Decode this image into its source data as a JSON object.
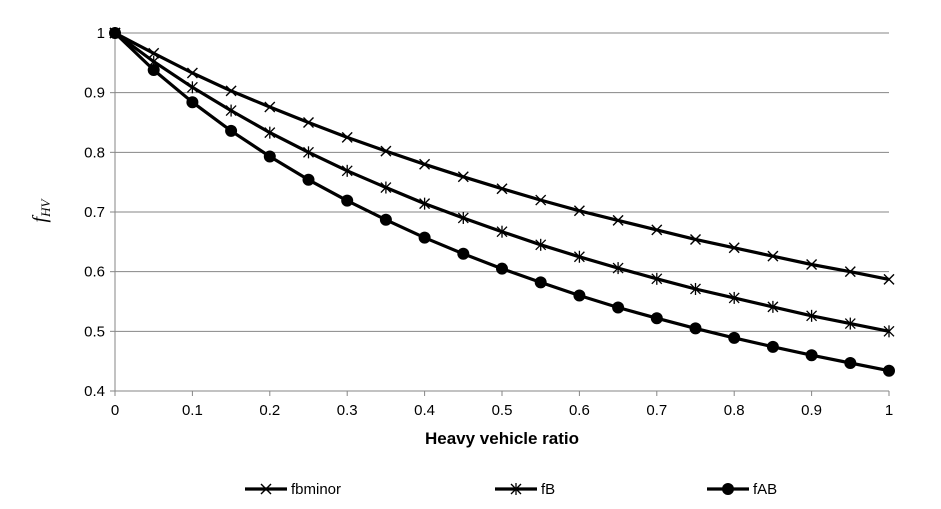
{
  "chart_data": {
    "type": "line",
    "xlabel": "Heavy vehicle ratio",
    "ylabel": {
      "main": "f",
      "sub": "HV"
    },
    "xlim": [
      0,
      1
    ],
    "ylim": [
      0.4,
      1
    ],
    "x_ticks": [
      0,
      0.1,
      0.2,
      0.3,
      0.4,
      0.5,
      0.6,
      0.7,
      0.8,
      0.9,
      1
    ],
    "y_ticks": [
      0.4,
      0.5,
      0.6,
      0.7,
      0.8,
      0.9,
      1
    ],
    "grid": "horizontal",
    "legend_position": "bottom",
    "x": [
      0,
      0.05,
      0.1,
      0.15,
      0.2,
      0.25,
      0.3,
      0.35,
      0.4,
      0.45,
      0.5,
      0.55,
      0.6,
      0.65,
      0.7,
      0.75,
      0.8,
      0.85,
      0.9,
      0.95,
      1
    ],
    "series": [
      {
        "name": "fbminor",
        "marker": "x",
        "color": "#000000",
        "values": [
          1,
          0.966,
          0.933,
          0.903,
          0.876,
          0.85,
          0.825,
          0.802,
          0.78,
          0.759,
          0.739,
          0.72,
          0.702,
          0.686,
          0.67,
          0.654,
          0.64,
          0.626,
          0.612,
          0.6,
          0.587
        ]
      },
      {
        "name": "fB",
        "marker": "asterisk",
        "color": "#000000",
        "values": [
          1,
          0.952,
          0.909,
          0.87,
          0.833,
          0.8,
          0.769,
          0.741,
          0.714,
          0.69,
          0.667,
          0.645,
          0.625,
          0.606,
          0.588,
          0.571,
          0.556,
          0.541,
          0.526,
          0.513,
          0.5
        ]
      },
      {
        "name": "fAB",
        "marker": "circle",
        "color": "#000000",
        "values": [
          1,
          0.938,
          0.884,
          0.836,
          0.793,
          0.754,
          0.719,
          0.687,
          0.657,
          0.63,
          0.605,
          0.582,
          0.56,
          0.54,
          0.522,
          0.505,
          0.489,
          0.474,
          0.46,
          0.447,
          0.434
        ]
      }
    ]
  }
}
